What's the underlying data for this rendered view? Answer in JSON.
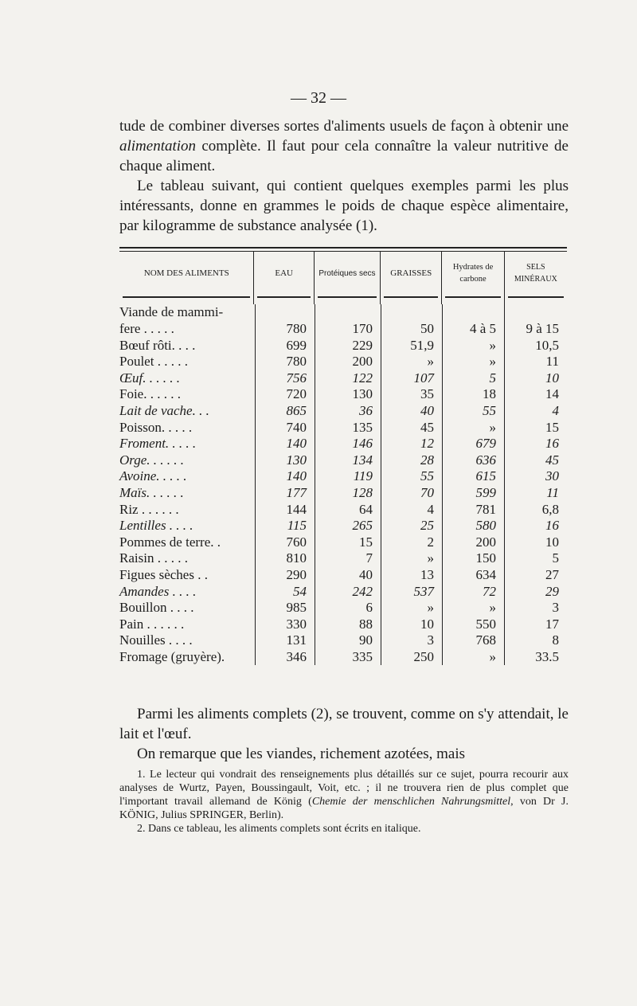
{
  "page_number": "— 32 —",
  "intro": {
    "p1_before": "tude de combiner diverses sortes d'aliments usuels de façon à obtenir une ",
    "p1_em": "alimentation",
    "p1_after": " complète. Il faut pour cela connaître la valeur nutritive de chaque aliment.",
    "p2": "Le tableau suivant, qui contient quelques exemples parmi les plus intéressants, donne en grammes le poids de chaque espèce alimentaire, par kilogramme de substance analysée (1)."
  },
  "table": {
    "headers": [
      "NOM DES ALIMENTS",
      "EAU",
      "Protéiques secs",
      "GRAISSES",
      "Hydrates de carbone",
      "SELS MINÉRAUX"
    ],
    "pre_row": "Viande de mammi-",
    "rows": [
      {
        "name": "fere . . . . .",
        "italic": false,
        "values": [
          "780",
          "170",
          "50",
          "4 à 5",
          "9 à 15"
        ]
      },
      {
        "name": "Bœuf rôti. . . .",
        "italic": false,
        "values": [
          "699",
          "229",
          "51,9",
          "»",
          "10,5"
        ]
      },
      {
        "name": "Poulet . . . . .",
        "italic": false,
        "values": [
          "780",
          "200",
          "»",
          "»",
          "11"
        ]
      },
      {
        "name": "Œuf. . . . . .",
        "italic": true,
        "values": [
          "756",
          "122",
          "107",
          "5",
          "10"
        ]
      },
      {
        "name": "Foie. . . . . .",
        "italic": false,
        "values": [
          "720",
          "130",
          "35",
          "18",
          "14"
        ]
      },
      {
        "name": "Lait de vache. . .",
        "italic": true,
        "values": [
          "865",
          "36",
          "40",
          "55",
          "4"
        ]
      },
      {
        "name": "Poisson. . . . .",
        "italic": false,
        "values": [
          "740",
          "135",
          "45",
          "»",
          "15"
        ]
      },
      {
        "name": "Froment. . . . .",
        "italic": true,
        "values": [
          "140",
          "146",
          "12",
          "679",
          "16"
        ]
      },
      {
        "name": "Orge. . . . . .",
        "italic": true,
        "values": [
          "130",
          "134",
          "28",
          "636",
          "45"
        ]
      },
      {
        "name": "Avoine. . . . .",
        "italic": true,
        "values": [
          "140",
          "119",
          "55",
          "615",
          "30"
        ]
      },
      {
        "name": "Maïs. . . . . .",
        "italic": true,
        "values": [
          "177",
          "128",
          "70",
          "599",
          "11"
        ]
      },
      {
        "name": "Riz . . . . . .",
        "italic": false,
        "values": [
          "144",
          "64",
          "4",
          "781",
          "6,8"
        ]
      },
      {
        "name": "Lentilles . . . .",
        "italic": true,
        "values": [
          "115",
          "265",
          "25",
          "580",
          "16"
        ]
      },
      {
        "name": "Pommes de terre. .",
        "italic": false,
        "values": [
          "760",
          "15",
          "2",
          "200",
          "10"
        ]
      },
      {
        "name": "Raisin . . . . .",
        "italic": false,
        "values": [
          "810",
          "7",
          "»",
          "150",
          "5"
        ]
      },
      {
        "name": "Figues sèches . .",
        "italic": false,
        "values": [
          "290",
          "40",
          "13",
          "634",
          "27"
        ]
      },
      {
        "name": "Amandes . . . .",
        "italic": true,
        "values": [
          "54",
          "242",
          "537",
          "72",
          "29"
        ]
      },
      {
        "name": "Bouillon . . . .",
        "italic": false,
        "values": [
          "985",
          "6",
          "»",
          "»",
          "3"
        ]
      },
      {
        "name": "Pain . . . . . .",
        "italic": false,
        "values": [
          "330",
          "88",
          "10",
          "550",
          "17"
        ]
      },
      {
        "name": "Nouilles . . . .",
        "italic": false,
        "values": [
          "131",
          "90",
          "3",
          "768",
          "8"
        ]
      },
      {
        "name": "Fromage (gruyère).",
        "italic": false,
        "values": [
          "346",
          "335",
          "250",
          "»",
          "33.5"
        ]
      }
    ]
  },
  "after": {
    "p1": "Parmi les aliments complets (2), se trouvent, comme on s'y attendait, le lait et l'œuf.",
    "p2": "On remarque que les viandes, richement azotées, mais"
  },
  "footnotes": {
    "n1_before": "1. Le lecteur qui vondrait des renseignements plus détaillés sur ce sujet, pourra recourir aux analyses de Wurtz, Payen, Boussingault, Voit, etc. ; il ne trouvera rien de plus complet que l'important travail allemand de König (",
    "n1_em": "Chemie der menschlichen Nahrungsmittel",
    "n1_after": ", von Dr J. KÖNIG, Julius SPRINGER, Berlin).",
    "n2": "2. Dans ce tableau, les aliments complets sont écrits en italique."
  }
}
